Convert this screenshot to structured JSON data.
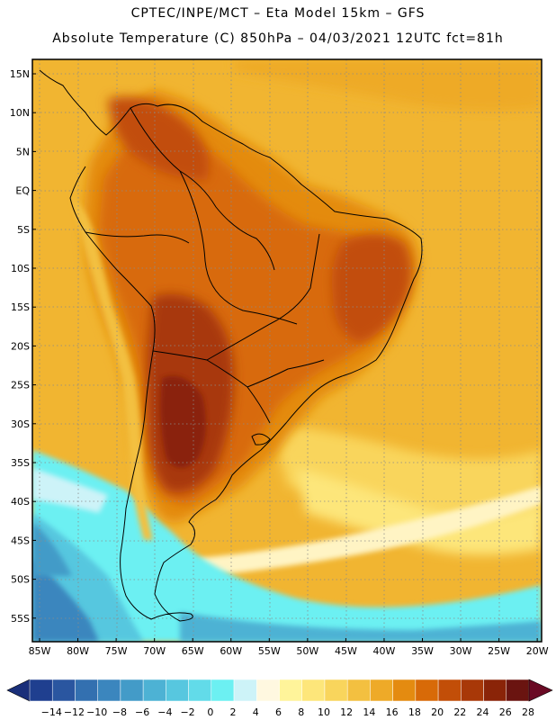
{
  "header": {
    "line1": "CPTEC/INPE/MCT –  Eta Model 15km – GFS",
    "line2": "Absolute Temperature (C) 850hPa – 04/03/2021 12UTC fct=81h"
  },
  "map": {
    "lat_labels": [
      "15N",
      "10N",
      "5N",
      "EQ",
      "5S",
      "10S",
      "15S",
      "20S",
      "25S",
      "30S",
      "35S",
      "40S",
      "45S",
      "50S",
      "55S"
    ],
    "lon_labels": [
      "85W",
      "80W",
      "75W",
      "70W",
      "65W",
      "60W",
      "55W",
      "50W",
      "45W",
      "40W",
      "35W",
      "30W",
      "25W",
      "20W"
    ]
  },
  "colorbar": {
    "labels": [
      "-14",
      "-12",
      "-10",
      "-8",
      "-6",
      "-4",
      "-2",
      "0",
      "2",
      "4",
      "6",
      "8",
      "10",
      "12",
      "14",
      "16",
      "18",
      "20",
      "22",
      "24",
      "26",
      "28"
    ],
    "colors": [
      "#1f3f8f",
      "#2a56a0",
      "#3370b0",
      "#3b86be",
      "#439bc8",
      "#4db2d4",
      "#57c7df",
      "#62dbe9",
      "#6cf0f2",
      "#cdf3f8",
      "#fff8e0",
      "#fff49a",
      "#fde67a",
      "#f9d55c",
      "#f3c040",
      "#eeaa28",
      "#e48b10",
      "#d86a08",
      "#c24e08",
      "#a83808",
      "#8a2408",
      "#6a1410"
    ],
    "under_color": "#1a2f7a",
    "over_color": "#6a0a24"
  }
}
